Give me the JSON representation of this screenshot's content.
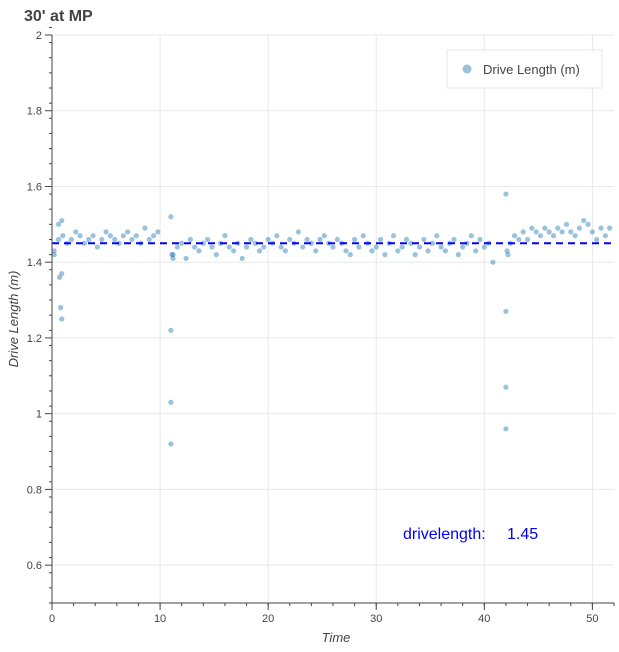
{
  "chart_data": {
    "type": "scatter",
    "title": "30' at MP",
    "xlabel": "Time",
    "ylabel": "Drive Length (m)",
    "xlim": [
      0,
      52
    ],
    "ylim": [
      0.5,
      2
    ],
    "xticks": [
      "0",
      "10",
      "20",
      "30",
      "40",
      "50"
    ],
    "yticks": [
      "0.6",
      "0.8",
      "1",
      "1.2",
      "1.4",
      "1.6",
      "1.8",
      "2"
    ],
    "grid": true,
    "legend": {
      "placement": "top-right",
      "entries": [
        "Drive Length (m)"
      ]
    },
    "series": [
      {
        "name": "Drive Length (m)",
        "color": "#1f77b4",
        "x": [
          0.2,
          0.6,
          1.0,
          1.4,
          1.8,
          2.2,
          2.6,
          3.0,
          3.4,
          3.8,
          4.2,
          4.6,
          5.0,
          5.4,
          5.8,
          6.2,
          6.6,
          7.0,
          7.4,
          7.8,
          8.2,
          8.6,
          9.0,
          9.4,
          9.8,
          0.6,
          0.9,
          0.7,
          0.9,
          0.8,
          0.9,
          0.2,
          11.2,
          11.6,
          12.0,
          12.4,
          12.8,
          13.2,
          13.6,
          14.0,
          14.4,
          14.8,
          15.2,
          15.6,
          16.0,
          16.4,
          16.8,
          17.2,
          17.6,
          18.0,
          18.4,
          18.8,
          19.2,
          19.6,
          20.0,
          20.4,
          20.8,
          21.2,
          21.6,
          22.0,
          22.4,
          22.8,
          23.2,
          23.6,
          24.0,
          24.4,
          24.8,
          25.2,
          25.6,
          26.0,
          26.4,
          26.8,
          27.2,
          27.6,
          28.0,
          28.4,
          28.8,
          29.2,
          29.6,
          30.0,
          30.4,
          30.8,
          31.2,
          31.6,
          32.0,
          32.4,
          32.8,
          33.2,
          33.6,
          34.0,
          34.4,
          34.8,
          35.2,
          35.6,
          36.0,
          36.4,
          36.8,
          37.2,
          37.6,
          38.0,
          38.4,
          38.8,
          39.2,
          39.6,
          40.0,
          40.4,
          11.0,
          11.0,
          11.0,
          11.0,
          11.1,
          11.2,
          40.8,
          42.0,
          42.0,
          42.0,
          42.0,
          42.1,
          42.2,
          42.4,
          42.8,
          43.2,
          43.6,
          44.0,
          44.4,
          44.8,
          45.2,
          45.6,
          46.0,
          46.4,
          46.8,
          47.2,
          47.6,
          48.0,
          48.4,
          48.8,
          49.2,
          49.6,
          50.0,
          50.4,
          50.8,
          51.2,
          51.6
        ],
        "y": [
          1.43,
          1.46,
          1.47,
          1.45,
          1.46,
          1.48,
          1.47,
          1.45,
          1.46,
          1.47,
          1.44,
          1.46,
          1.48,
          1.47,
          1.46,
          1.45,
          1.47,
          1.48,
          1.46,
          1.47,
          1.45,
          1.49,
          1.46,
          1.47,
          1.48,
          1.5,
          1.51,
          1.36,
          1.37,
          1.28,
          1.25,
          1.42,
          1.42,
          1.44,
          1.45,
          1.41,
          1.46,
          1.44,
          1.43,
          1.45,
          1.46,
          1.44,
          1.42,
          1.45,
          1.47,
          1.44,
          1.43,
          1.45,
          1.41,
          1.44,
          1.46,
          1.45,
          1.43,
          1.44,
          1.46,
          1.45,
          1.47,
          1.44,
          1.43,
          1.46,
          1.45,
          1.48,
          1.44,
          1.46,
          1.45,
          1.43,
          1.46,
          1.47,
          1.45,
          1.44,
          1.46,
          1.45,
          1.43,
          1.42,
          1.46,
          1.44,
          1.47,
          1.45,
          1.43,
          1.44,
          1.46,
          1.42,
          1.45,
          1.47,
          1.43,
          1.44,
          1.46,
          1.45,
          1.42,
          1.44,
          1.46,
          1.43,
          1.45,
          1.47,
          1.44,
          1.43,
          1.45,
          1.46,
          1.42,
          1.44,
          1.45,
          1.47,
          1.43,
          1.46,
          1.44,
          1.45,
          1.52,
          1.22,
          1.03,
          0.92,
          1.42,
          1.41,
          1.4,
          1.58,
          1.27,
          1.07,
          0.96,
          1.43,
          1.42,
          1.45,
          1.47,
          1.46,
          1.48,
          1.46,
          1.49,
          1.48,
          1.47,
          1.49,
          1.48,
          1.47,
          1.49,
          1.48,
          1.5,
          1.48,
          1.47,
          1.49,
          1.51,
          1.5,
          1.48,
          1.46,
          1.49,
          1.47,
          1.49
        ]
      }
    ],
    "reference_line": {
      "y": 1.45,
      "color": "#0000ff",
      "style": "dashed"
    },
    "annotation": {
      "label": "drivelength:",
      "value": "1.45",
      "color": "#0000ff"
    }
  }
}
